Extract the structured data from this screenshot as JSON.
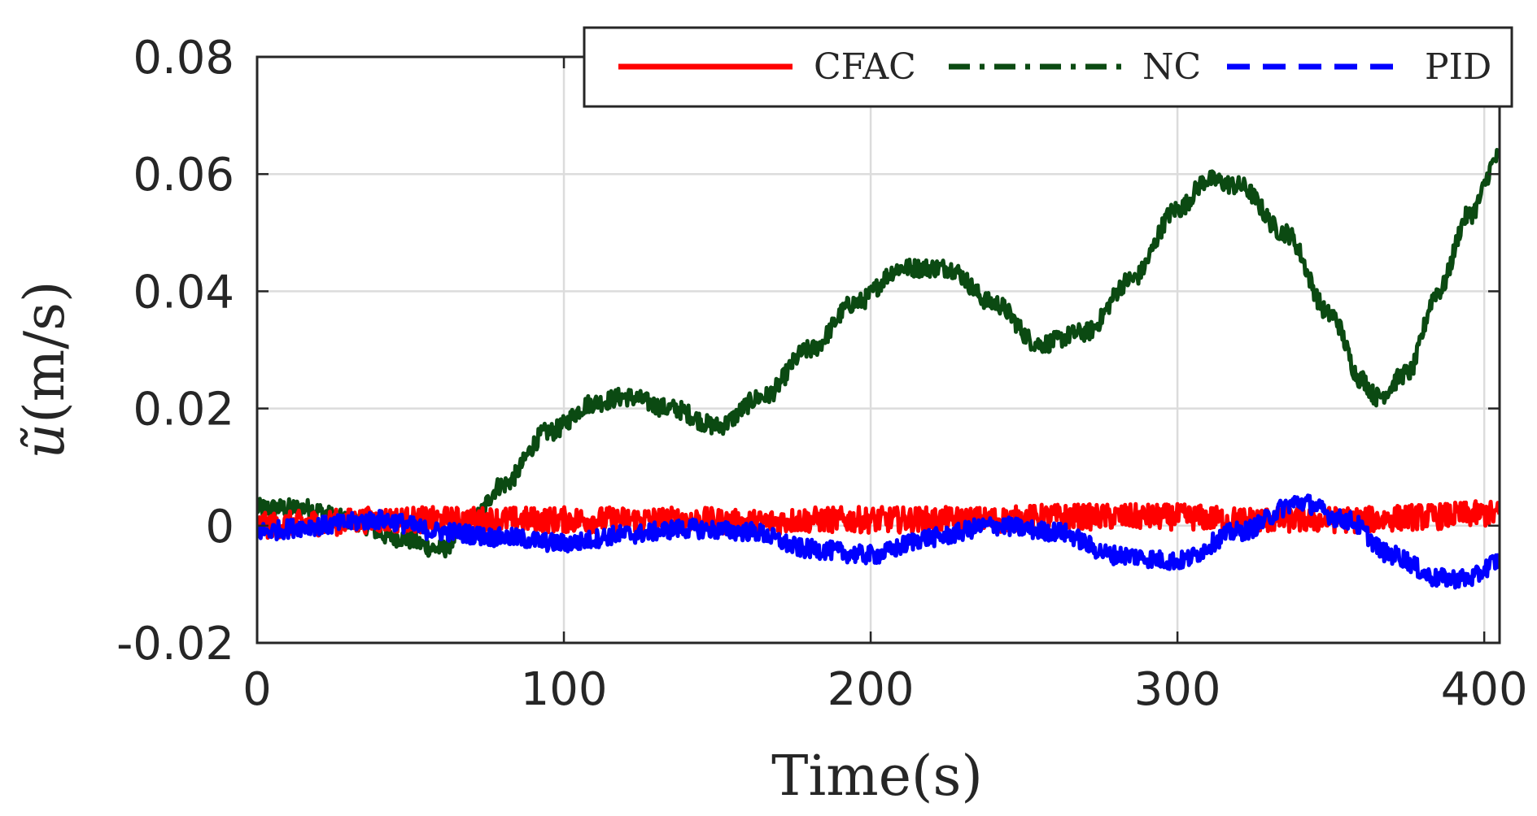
{
  "chart_data": {
    "type": "line",
    "title": "",
    "xlabel": "Time(s)",
    "ylabel_symbol": "ũ",
    "ylabel_unit": "(m/s)",
    "xlim": [
      0,
      405
    ],
    "ylim": [
      -0.02,
      0.08
    ],
    "xticks": [
      0,
      100,
      200,
      300,
      400
    ],
    "xtick_labels": [
      "0",
      "100",
      "200",
      "300",
      "400"
    ],
    "yticks": [
      -0.02,
      0,
      0.02,
      0.04,
      0.06,
      0.08
    ],
    "ytick_labels": [
      "-0.02",
      "0",
      "0.02",
      "0.04",
      "0.06",
      "0.08"
    ],
    "grid": true,
    "legend_position": "top-right",
    "series": [
      {
        "name": "CFAC",
        "color": "#ff0000",
        "style": "solid",
        "noise": 0.0022,
        "x": [
          0,
          20,
          40,
          60,
          80,
          100,
          120,
          140,
          160,
          180,
          200,
          220,
          240,
          260,
          280,
          300,
          320,
          340,
          360,
          380,
          400,
          405
        ],
        "y": [
          0.0,
          0.0005,
          0.001,
          0.001,
          0.001,
          0.001,
          0.001,
          0.001,
          0.0005,
          0.001,
          0.001,
          0.001,
          0.001,
          0.0015,
          0.0015,
          0.0015,
          0.001,
          0.001,
          0.001,
          0.0015,
          0.002,
          0.002
        ]
      },
      {
        "name": "NC",
        "color": "#0b4a12",
        "style": "dashdot",
        "noise": 0.0016,
        "x": [
          0,
          15,
          30,
          45,
          60,
          70,
          80,
          95,
          110,
          120,
          135,
          150,
          165,
          180,
          195,
          210,
          225,
          240,
          255,
          270,
          285,
          300,
          310,
          320,
          335,
          350,
          360,
          365,
          375,
          385,
          395,
          405
        ],
        "y": [
          0.003,
          0.003,
          0.001,
          -0.002,
          -0.004,
          0.001,
          0.007,
          0.016,
          0.021,
          0.022,
          0.02,
          0.017,
          0.022,
          0.03,
          0.038,
          0.044,
          0.044,
          0.038,
          0.031,
          0.033,
          0.042,
          0.054,
          0.059,
          0.058,
          0.05,
          0.036,
          0.025,
          0.022,
          0.026,
          0.04,
          0.053,
          0.063
        ]
      },
      {
        "name": "PID",
        "color": "#0000ff",
        "style": "dashed",
        "noise": 0.0016,
        "x": [
          0,
          20,
          40,
          60,
          80,
          100,
          120,
          140,
          160,
          180,
          200,
          220,
          240,
          260,
          280,
          300,
          320,
          340,
          355,
          370,
          385,
          395,
          405
        ],
        "y": [
          -0.001,
          0.0,
          0.001,
          -0.001,
          -0.002,
          -0.003,
          -0.0015,
          -0.0005,
          -0.001,
          -0.004,
          -0.005,
          -0.002,
          0.0,
          -0.001,
          -0.005,
          -0.006,
          -0.001,
          0.004,
          0.001,
          -0.005,
          -0.009,
          -0.009,
          -0.006
        ]
      }
    ]
  }
}
